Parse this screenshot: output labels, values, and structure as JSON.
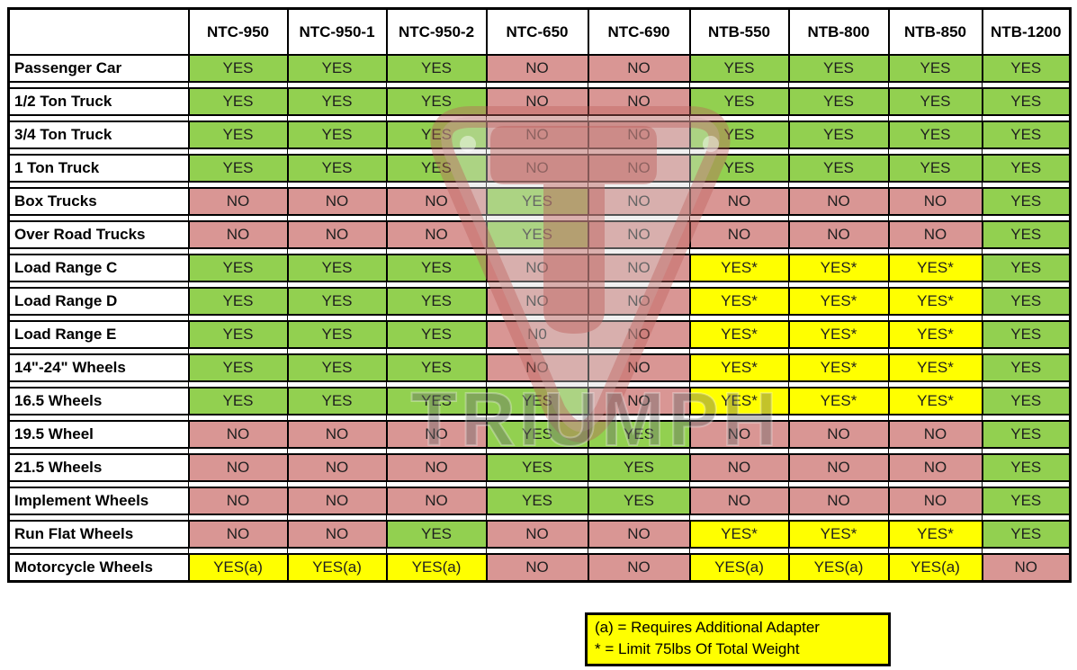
{
  "chart_data": {
    "type": "table",
    "columns": [
      "NTC-950",
      "NTC-950-1",
      "NTC-950-2",
      "NTC-650",
      "NTC-690",
      "NTB-550",
      "NTB-800",
      "NTB-850",
      "NTB-1200"
    ],
    "rows": [
      {
        "label": "Passenger Car",
        "values": [
          "YES",
          "YES",
          "YES",
          "NO",
          "NO",
          "YES",
          "YES",
          "YES",
          "YES"
        ]
      },
      {
        "label": "1/2 Ton Truck",
        "values": [
          "YES",
          "YES",
          "YES",
          "NO",
          "NO",
          "YES",
          "YES",
          "YES",
          "YES"
        ]
      },
      {
        "label": "3/4 Ton Truck",
        "values": [
          "YES",
          "YES",
          "YES",
          "NO",
          "NO",
          "YES",
          "YES",
          "YES",
          "YES"
        ]
      },
      {
        "label": "1 Ton Truck",
        "values": [
          "YES",
          "YES",
          "YES",
          "NO",
          "NO",
          "YES",
          "YES",
          "YES",
          "YES"
        ]
      },
      {
        "label": "Box Trucks",
        "values": [
          "NO",
          "NO",
          "NO",
          "YES",
          "NO",
          "NO",
          "NO",
          "NO",
          "YES"
        ]
      },
      {
        "label": "Over Road Trucks",
        "values": [
          "NO",
          "NO",
          "NO",
          "YES",
          "NO",
          "NO",
          "NO",
          "NO",
          "YES"
        ]
      },
      {
        "label": "Load Range C",
        "values": [
          "YES",
          "YES",
          "YES",
          "NO",
          "NO",
          "YES*",
          "YES*",
          "YES*",
          "YES"
        ]
      },
      {
        "label": "Load Range D",
        "values": [
          "YES",
          "YES",
          "YES",
          "NO",
          "NO",
          "YES*",
          "YES*",
          "YES*",
          "YES"
        ]
      },
      {
        "label": "Load Range E",
        "values": [
          "YES",
          "YES",
          "YES",
          "N0",
          "NO",
          "YES*",
          "YES*",
          "YES*",
          "YES"
        ]
      },
      {
        "label": "14\"-24\" Wheels",
        "values": [
          "YES",
          "YES",
          "YES",
          "NO",
          "NO",
          "YES*",
          "YES*",
          "YES*",
          "YES"
        ]
      },
      {
        "label": "16.5 Wheels",
        "values": [
          "YES",
          "YES",
          "YES",
          "YES",
          "NO",
          "YES*",
          "YES*",
          "YES*",
          "YES"
        ]
      },
      {
        "label": "19.5 Wheel",
        "values": [
          "NO",
          "NO",
          "NO",
          "YES",
          "YES",
          "NO",
          "NO",
          "NO",
          "YES"
        ]
      },
      {
        "label": "21.5 Wheels",
        "values": [
          "NO",
          "NO",
          "NO",
          "YES",
          "YES",
          "NO",
          "NO",
          "NO",
          "YES"
        ]
      },
      {
        "label": "Implement Wheels",
        "values": [
          "NO",
          "NO",
          "NO",
          "YES",
          "YES",
          "NO",
          "NO",
          "NO",
          "YES"
        ]
      },
      {
        "label": "Run Flat Wheels",
        "values": [
          "NO",
          "NO",
          "YES",
          "NO",
          "NO",
          "YES*",
          "YES*",
          "YES*",
          "YES"
        ]
      },
      {
        "label": "Motorcycle Wheels",
        "values": [
          "YES(a)",
          "YES(a)",
          "YES(a)",
          "NO",
          "NO",
          "YES(a)",
          "YES(a)",
          "YES(a)",
          "NO"
        ]
      }
    ],
    "legend": {
      "line1": "(a) = Requires Additional Adapter",
      "line2": "* = Limit 75lbs Of Total Weight"
    },
    "watermark": {
      "text": "TRIUMPH"
    },
    "colors": {
      "yes_green": "#92D050",
      "no_red": "#D99694",
      "note_yellow": "#FFFF00",
      "border_black": "#000000"
    }
  }
}
